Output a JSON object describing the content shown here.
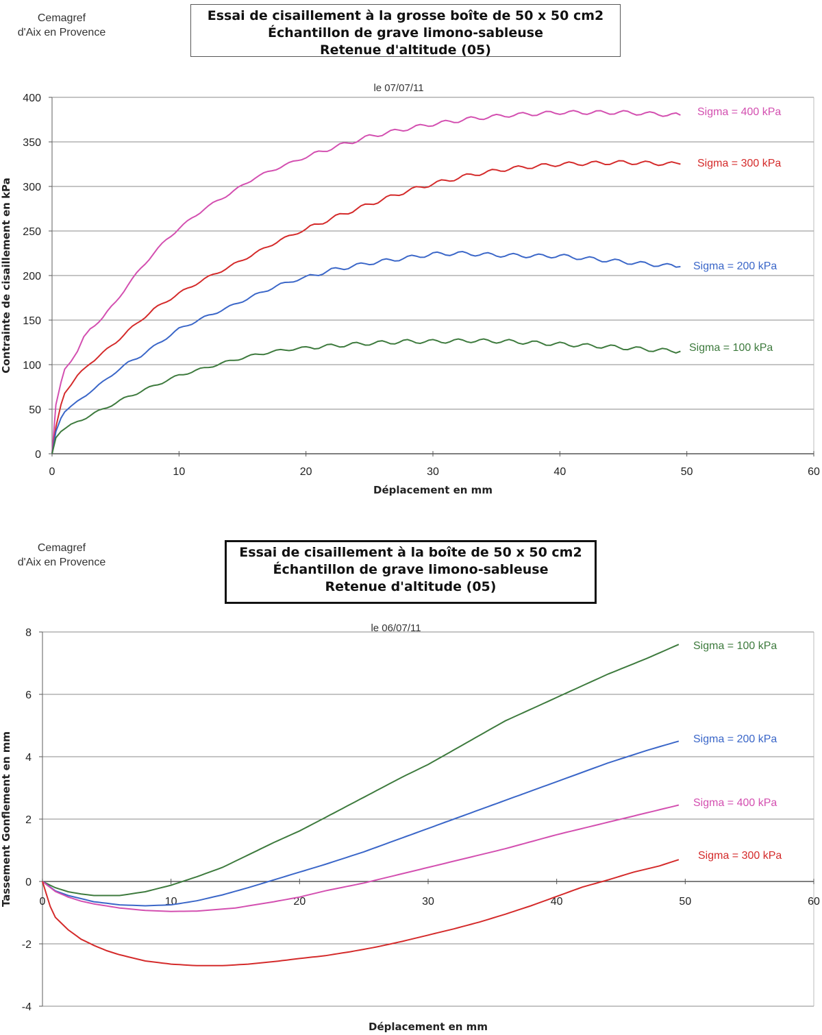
{
  "header_top": {
    "org_line1": "Cemagref",
    "org_line2": "d'Aix en Provence",
    "title_line1": "Essai de cisaillement à la grosse boîte de 50 x 50 cm2",
    "title_line2": "Échantillon de grave limono-sableuse",
    "title_line3": "Retenue d'altitude (05)"
  },
  "header_bottom": {
    "org_line1": "Cemagref",
    "org_line2": "d'Aix en Provence",
    "title_line1": "Essai de cisaillement à la boîte de 50 x 50 cm2",
    "title_line2": "Échantillon de grave limono-sableuse",
    "title_line3": "Retenue d'altitude  (05)"
  },
  "chart_data": [
    {
      "type": "line",
      "subtitle": "le 07/07/11",
      "xlabel": "Déplacement en mm",
      "ylabel": "Contrainte de cisaillement en kPa",
      "xlim": [
        0,
        60
      ],
      "ylim": [
        0,
        400
      ],
      "xticks": [
        0,
        10,
        20,
        30,
        40,
        50,
        60
      ],
      "yticks": [
        0,
        50,
        100,
        150,
        200,
        250,
        300,
        350,
        400
      ],
      "grid": "horizontal",
      "legend": "series labels at right end of each curve",
      "series": [
        {
          "name": "Sigma = 400 kPa",
          "color": "#d34fb0",
          "end": 49.6,
          "x": [
            0,
            0.3,
            0.7,
            1,
            1.5,
            2,
            2.5,
            3,
            4,
            5,
            6,
            7,
            8,
            9,
            10,
            12,
            14,
            16,
            18,
            20,
            22,
            25,
            28,
            30,
            33,
            36,
            40,
            45,
            49.5
          ],
          "y": [
            0,
            55,
            80,
            95,
            105,
            115,
            130,
            140,
            153,
            170,
            190,
            208,
            225,
            240,
            253,
            275,
            292,
            310,
            322,
            333,
            343,
            356,
            365,
            370,
            376,
            380,
            383,
            383,
            380
          ]
        },
        {
          "name": "Sigma = 300 kPa",
          "color": "#d42a2a",
          "end": 49.6,
          "x": [
            0,
            0.3,
            0.7,
            1,
            1.5,
            2,
            3,
            4,
            5,
            6,
            7,
            8,
            10,
            12,
            14,
            16,
            18,
            20,
            22,
            25,
            28,
            30,
            33,
            36,
            40,
            45,
            49.5
          ],
          "y": [
            0,
            30,
            55,
            68,
            78,
            87,
            102,
            113,
            125,
            138,
            150,
            162,
            180,
            196,
            210,
            225,
            240,
            252,
            264,
            280,
            295,
            303,
            313,
            320,
            325,
            327,
            325
          ]
        },
        {
          "name": "Sigma = 200 kPa",
          "color": "#3a66c8",
          "end": 49.6,
          "x": [
            0,
            0.3,
            0.7,
            1,
            1.5,
            2,
            3,
            4,
            5,
            6,
            7,
            8,
            10,
            12,
            14,
            16,
            18,
            20,
            22,
            25,
            28,
            30,
            32,
            35,
            38,
            40,
            43,
            46,
            49.5
          ],
          "y": [
            0,
            25,
            40,
            47,
            53,
            58,
            70,
            80,
            92,
            102,
            110,
            120,
            140,
            153,
            165,
            178,
            190,
            198,
            206,
            214,
            220,
            224,
            225,
            223,
            222,
            222,
            218,
            214,
            210
          ]
        },
        {
          "name": "Sigma = 100 kPa",
          "color": "#3d7a3d",
          "end": 49.6,
          "x": [
            0,
            0.3,
            0.7,
            1,
            1.5,
            2,
            3,
            4,
            5,
            6,
            7,
            8,
            10,
            12,
            14,
            16,
            18,
            20,
            22,
            25,
            28,
            30,
            33,
            36,
            40,
            44,
            47,
            49.5
          ],
          "y": [
            0,
            18,
            25,
            28,
            32,
            36,
            43,
            50,
            57,
            64,
            70,
            76,
            88,
            96,
            104,
            111,
            116,
            119,
            121,
            124,
            126,
            126,
            127,
            126,
            123,
            120,
            117,
            115
          ]
        }
      ]
    },
    {
      "type": "line",
      "subtitle": "le 06/07/11",
      "xlabel": "Déplacement en mm",
      "ylabel": "Tassement Gonflement en mm",
      "xlim": [
        0,
        60
      ],
      "ylim": [
        -4,
        8
      ],
      "xticks": [
        0,
        10,
        20,
        30,
        40,
        50,
        60
      ],
      "yticks": [
        -4,
        -2,
        0,
        2,
        4,
        6,
        8
      ],
      "grid": "horizontal",
      "legend": "series labels at right end of each curve",
      "series": [
        {
          "name": "Sigma = 100 kPa",
          "color": "#3d7a3d",
          "x": [
            0,
            1,
            2,
            3,
            4,
            5,
            6,
            8,
            10,
            12,
            14,
            16,
            18,
            20,
            22,
            25,
            28,
            30,
            33,
            36,
            40,
            44,
            47,
            49.5
          ],
          "y": [
            0,
            -0.2,
            -0.33,
            -0.4,
            -0.45,
            -0.45,
            -0.45,
            -0.33,
            -0.12,
            0.15,
            0.45,
            0.85,
            1.25,
            1.62,
            2.05,
            2.7,
            3.35,
            3.75,
            4.45,
            5.15,
            5.9,
            6.65,
            7.15,
            7.6
          ]
        },
        {
          "name": "Sigma = 200 kPa",
          "color": "#3a66c8",
          "x": [
            0,
            1,
            2,
            3,
            4,
            6,
            8,
            10,
            12,
            14,
            16,
            18,
            20,
            22,
            25,
            28,
            30,
            33,
            36,
            40,
            44,
            47,
            49.5
          ],
          "y": [
            0,
            -0.3,
            -0.45,
            -0.55,
            -0.65,
            -0.75,
            -0.78,
            -0.75,
            -0.62,
            -0.43,
            -0.2,
            0.05,
            0.3,
            0.55,
            0.95,
            1.4,
            1.7,
            2.15,
            2.6,
            3.2,
            3.8,
            4.2,
            4.5
          ]
        },
        {
          "name": "Sigma = 400 kPa",
          "color": "#d34fb0",
          "x": [
            0,
            1,
            2,
            3,
            4,
            6,
            8,
            10,
            12,
            15,
            18,
            20,
            22,
            25,
            28,
            30,
            33,
            36,
            40,
            44,
            47,
            49.5
          ],
          "y": [
            0,
            -0.32,
            -0.5,
            -0.63,
            -0.72,
            -0.85,
            -0.93,
            -0.96,
            -0.95,
            -0.85,
            -0.65,
            -0.5,
            -0.3,
            -0.05,
            0.25,
            0.45,
            0.75,
            1.05,
            1.5,
            1.9,
            2.2,
            2.45
          ]
        },
        {
          "name": "Sigma = 300 kPa",
          "color": "#d42a2a",
          "x": [
            0,
            0.3,
            0.6,
            1,
            2,
            3,
            4,
            5,
            6,
            8,
            10,
            12,
            14,
            16,
            18,
            20,
            22,
            24,
            26,
            28,
            30,
            32,
            34,
            36,
            38,
            40,
            42,
            44,
            46,
            48,
            49.5
          ],
          "y": [
            0,
            -0.4,
            -0.8,
            -1.15,
            -1.55,
            -1.85,
            -2.05,
            -2.22,
            -2.35,
            -2.55,
            -2.65,
            -2.7,
            -2.7,
            -2.65,
            -2.57,
            -2.47,
            -2.38,
            -2.25,
            -2.1,
            -1.92,
            -1.72,
            -1.52,
            -1.3,
            -1.05,
            -0.78,
            -0.48,
            -0.18,
            0.05,
            0.3,
            0.5,
            0.7
          ]
        }
      ]
    }
  ]
}
